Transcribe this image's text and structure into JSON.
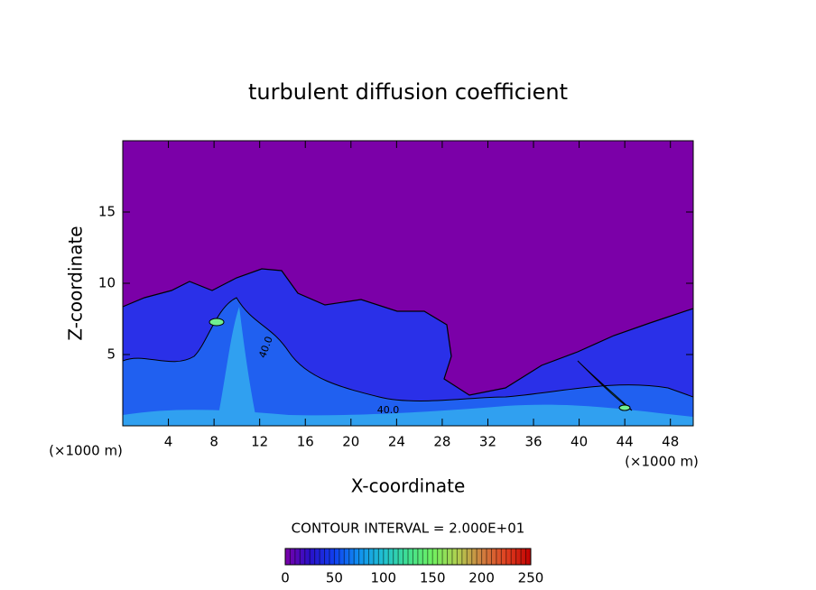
{
  "chart_data": {
    "type": "contour",
    "title": "turbulent diffusion coefficient",
    "x_label": "X-coordinate",
    "y_label": "Z-coordinate",
    "x_unit_left": "(×1000 m)",
    "x_unit_right": "(×1000 m)",
    "xlim": [
      0,
      50
    ],
    "xticks": [
      4,
      8,
      12,
      16,
      20,
      24,
      28,
      32,
      36,
      40,
      44,
      48
    ],
    "ylim": [
      0,
      20
    ],
    "yticks": [
      5,
      10,
      15
    ],
    "contour_interval": "CONTOUR INTERVAL = 2.000E+01",
    "contour_labels": [
      "40.0",
      "40.0"
    ],
    "colorbar": {
      "clim": [
        0,
        250
      ],
      "ticks": [
        0,
        50,
        100,
        150,
        200,
        250
      ],
      "colors": [
        "#7b00a8",
        "#2a10c8",
        "#1040f0",
        "#1090f0",
        "#20c0d0",
        "#40e090",
        "#70f060",
        "#b0d050",
        "#d08040",
        "#e04020",
        "#c00000"
      ]
    },
    "background_color": "#7b00a8"
  }
}
